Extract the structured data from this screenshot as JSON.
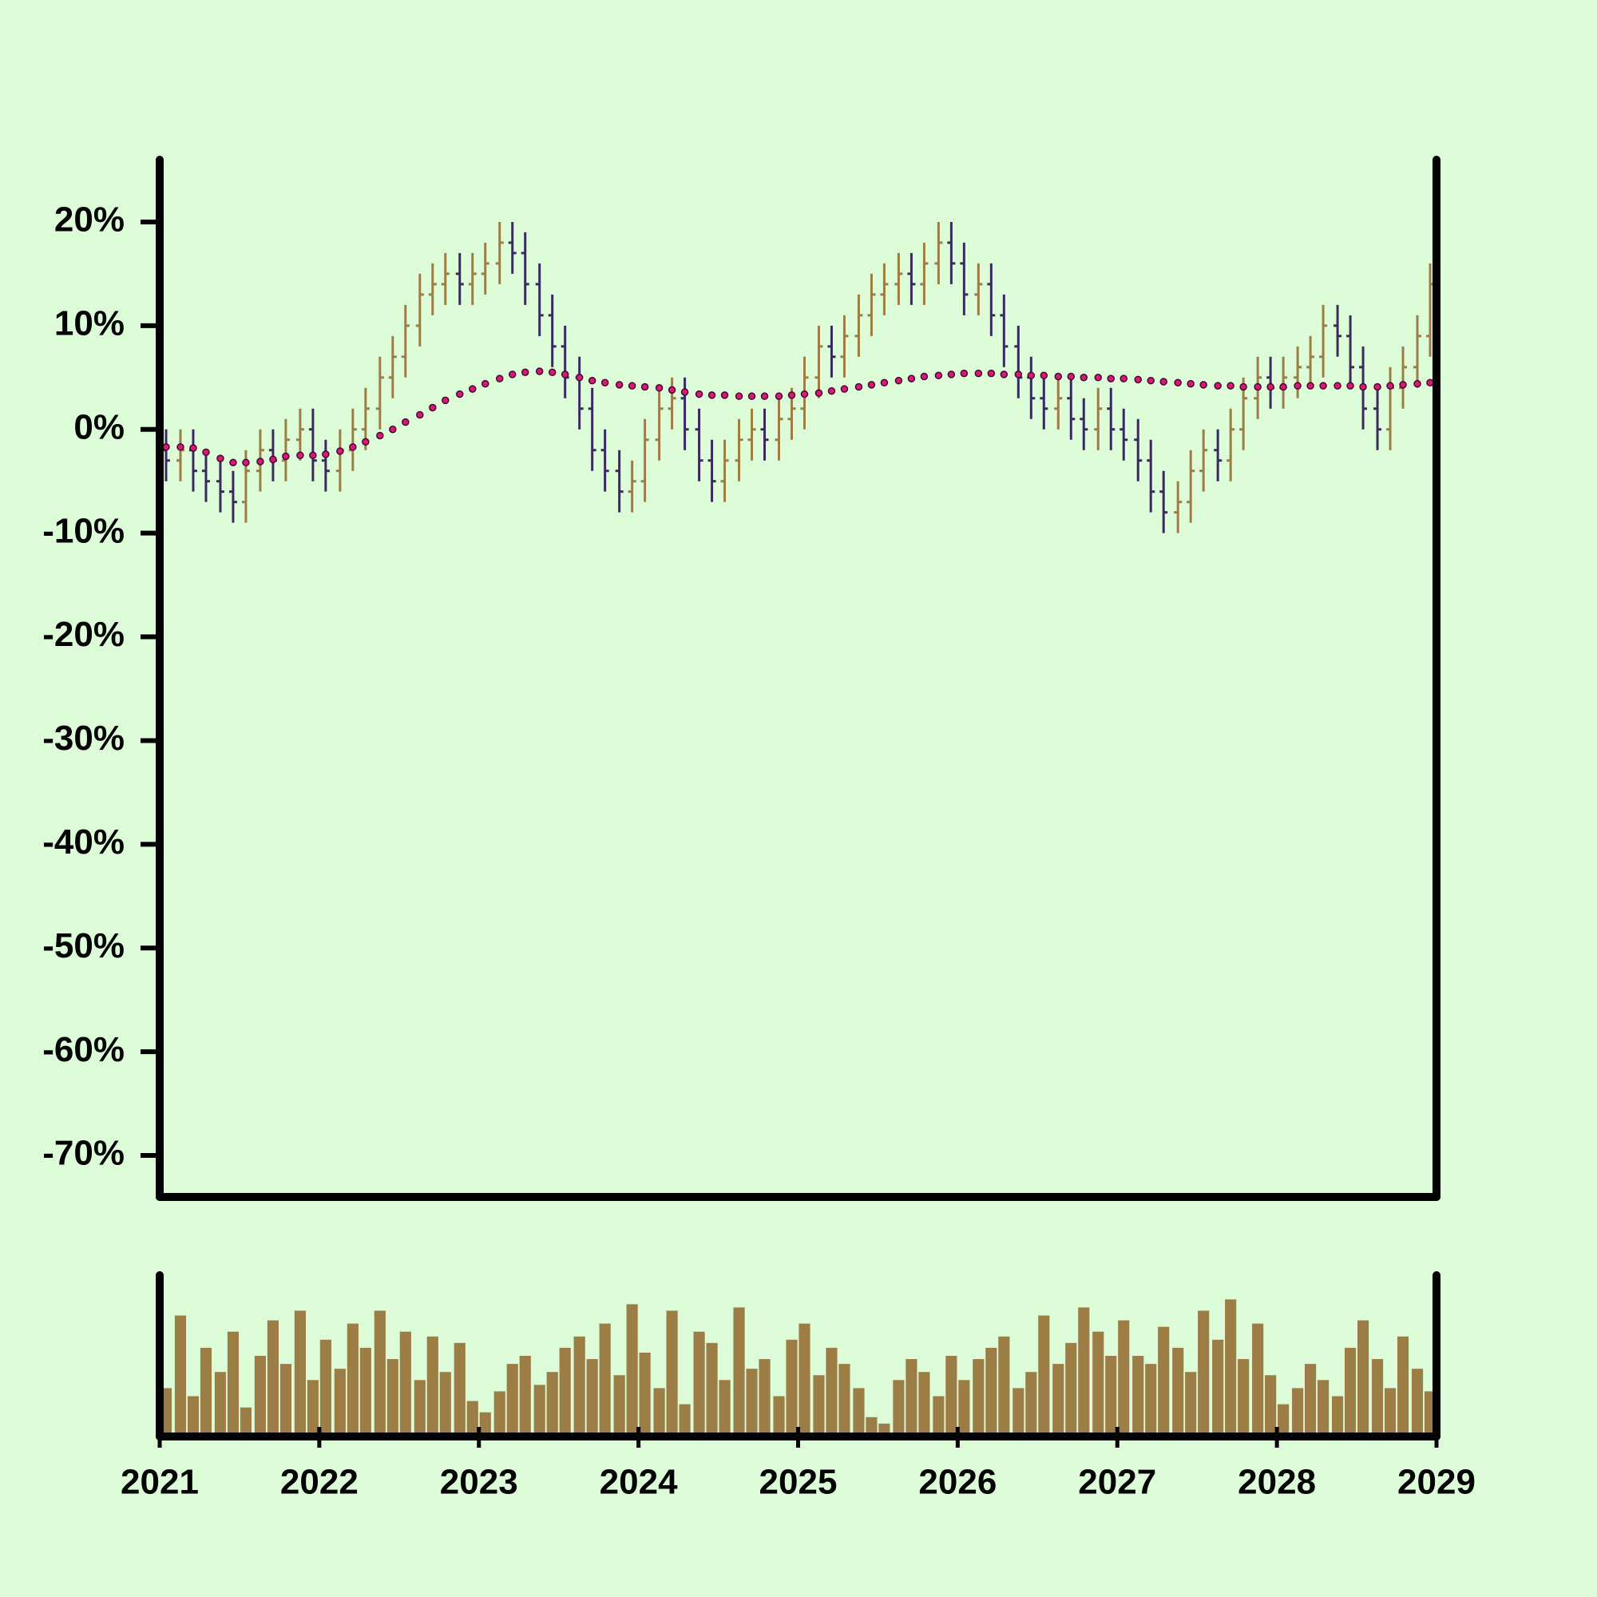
{
  "chart_data": [
    {
      "type": "ohlc",
      "x": [
        2021.04,
        2021.13,
        2021.21,
        2021.29,
        2021.38,
        2021.46,
        2021.54,
        2021.63,
        2021.71,
        2021.79,
        2021.88,
        2021.96,
        2022.04,
        2022.13,
        2022.21,
        2022.29,
        2022.38,
        2022.46,
        2022.54,
        2022.63,
        2022.71,
        2022.79,
        2022.88,
        2022.96,
        2023.04,
        2023.13,
        2023.21,
        2023.29,
        2023.38,
        2023.46,
        2023.54,
        2023.63,
        2023.71,
        2023.79,
        2023.88,
        2023.96,
        2024.04,
        2024.13,
        2024.21,
        2024.29,
        2024.38,
        2024.46,
        2024.54,
        2024.63,
        2024.71,
        2024.79,
        2024.88,
        2024.96,
        2025.04,
        2025.13,
        2025.21,
        2025.29,
        2025.38,
        2025.46,
        2025.54,
        2025.63,
        2025.71,
        2025.79,
        2025.88,
        2025.96,
        2026.04,
        2026.13,
        2026.21,
        2026.29,
        2026.38,
        2026.46,
        2026.54,
        2026.63,
        2026.71,
        2026.79,
        2026.88,
        2026.96,
        2027.04,
        2027.13,
        2027.21,
        2027.29,
        2027.38,
        2027.46,
        2027.54,
        2027.63,
        2027.71,
        2027.79,
        2027.88,
        2027.96,
        2028.04,
        2028.13,
        2028.21,
        2028.29,
        2028.38,
        2028.46,
        2028.54,
        2028.63,
        2028.71,
        2028.79,
        2028.88,
        2028.96
      ],
      "open": [
        -2,
        -3,
        -2,
        -4,
        -5,
        -6,
        -7,
        -4,
        -2,
        -3,
        -1,
        0,
        -3,
        -4,
        -2,
        0,
        2,
        5,
        7,
        10,
        13,
        14,
        15,
        14,
        15,
        16,
        18,
        17,
        14,
        11,
        8,
        5,
        2,
        -2,
        -4,
        -6,
        -5,
        -1,
        2,
        3,
        0,
        -3,
        -5,
        -3,
        -1,
        0,
        -1,
        1,
        2,
        5,
        8,
        7,
        9,
        11,
        13,
        14,
        15,
        14,
        16,
        18,
        16,
        13,
        14,
        11,
        8,
        5,
        3,
        2,
        3,
        1,
        0,
        2,
        0,
        -1,
        -3,
        -6,
        -8,
        -7,
        -4,
        -2,
        -3,
        0,
        3,
        5,
        4,
        5,
        6,
        7,
        10,
        9,
        6,
        2,
        0,
        4,
        6,
        9
      ],
      "high": [
        0,
        0,
        0,
        -2,
        -3,
        -4,
        -2,
        0,
        0,
        1,
        2,
        2,
        -1,
        0,
        2,
        4,
        7,
        9,
        12,
        15,
        16,
        17,
        17,
        17,
        18,
        20,
        20,
        19,
        16,
        13,
        10,
        7,
        4,
        0,
        -2,
        -3,
        1,
        4,
        5,
        5,
        2,
        -1,
        -1,
        1,
        2,
        2,
        3,
        4,
        7,
        10,
        10,
        11,
        13,
        15,
        16,
        17,
        17,
        18,
        20,
        20,
        18,
        16,
        16,
        13,
        10,
        7,
        5,
        5,
        5,
        3,
        4,
        4,
        2,
        1,
        -1,
        -4,
        -5,
        -2,
        0,
        0,
        2,
        5,
        7,
        7,
        7,
        8,
        9,
        12,
        12,
        11,
        8,
        4,
        6,
        8,
        11,
        16
      ],
      "low": [
        -5,
        -5,
        -6,
        -7,
        -8,
        -9,
        -9,
        -6,
        -5,
        -5,
        -3,
        -5,
        -6,
        -6,
        -4,
        -2,
        0,
        3,
        5,
        8,
        11,
        12,
        12,
        12,
        13,
        14,
        15,
        12,
        9,
        6,
        3,
        0,
        -4,
        -6,
        -8,
        -8,
        -7,
        -3,
        0,
        -2,
        -5,
        -7,
        -7,
        -5,
        -3,
        -3,
        -3,
        -1,
        0,
        3,
        5,
        5,
        7,
        9,
        11,
        12,
        12,
        12,
        14,
        14,
        11,
        11,
        9,
        6,
        3,
        1,
        0,
        0,
        -1,
        -2,
        -2,
        -2,
        -3,
        -5,
        -8,
        -10,
        -10,
        -9,
        -6,
        -5,
        -5,
        -2,
        1,
        2,
        2,
        3,
        4,
        5,
        7,
        4,
        0,
        -2,
        -2,
        2,
        4,
        7
      ],
      "close": [
        -3,
        -2,
        -4,
        -5,
        -6,
        -7,
        -4,
        -2,
        -3,
        -1,
        0,
        -3,
        -4,
        -2,
        0,
        2,
        5,
        7,
        10,
        13,
        14,
        15,
        14,
        15,
        16,
        18,
        17,
        14,
        11,
        8,
        5,
        2,
        -2,
        -4,
        -6,
        -5,
        -1,
        2,
        3,
        0,
        -3,
        -5,
        -3,
        -1,
        0,
        -1,
        1,
        2,
        5,
        8,
        7,
        9,
        11,
        13,
        14,
        15,
        14,
        16,
        18,
        16,
        13,
        14,
        11,
        8,
        5,
        3,
        2,
        3,
        1,
        0,
        2,
        0,
        -1,
        -3,
        -6,
        -8,
        -7,
        -4,
        -2,
        -3,
        0,
        3,
        5,
        4,
        5,
        6,
        7,
        10,
        9,
        6,
        2,
        0,
        4,
        6,
        9,
        14
      ],
      "up_color": "#9b7d45",
      "down_color": "#3b2a5e",
      "ma": {
        "color": "#e0147a",
        "values": [
          -1.7,
          -1.7,
          -1.8,
          -2.2,
          -2.8,
          -3.2,
          -3.2,
          -3.1,
          -2.9,
          -2.6,
          -2.5,
          -2.5,
          -2.4,
          -2.1,
          -1.7,
          -1.2,
          -0.6,
          0.0,
          0.7,
          1.4,
          2.1,
          2.8,
          3.4,
          3.9,
          4.4,
          4.9,
          5.3,
          5.5,
          5.6,
          5.5,
          5.3,
          5.0,
          4.7,
          4.5,
          4.3,
          4.2,
          4.1,
          4.0,
          3.8,
          3.6,
          3.4,
          3.3,
          3.3,
          3.2,
          3.2,
          3.2,
          3.2,
          3.3,
          3.4,
          3.5,
          3.7,
          3.9,
          4.1,
          4.3,
          4.5,
          4.7,
          4.9,
          5.1,
          5.2,
          5.3,
          5.4,
          5.4,
          5.4,
          5.3,
          5.3,
          5.2,
          5.2,
          5.1,
          5.1,
          5.0,
          5.0,
          4.9,
          4.9,
          4.8,
          4.7,
          4.6,
          4.5,
          4.4,
          4.3,
          4.2,
          4.2,
          4.1,
          4.1,
          4.1,
          4.1,
          4.2,
          4.2,
          4.2,
          4.2,
          4.2,
          4.1,
          4.1,
          4.2,
          4.3,
          4.4,
          4.5
        ]
      },
      "xlim": [
        2021,
        2029
      ],
      "ylim": [
        -74,
        26
      ],
      "yticks": [
        {
          "value": 20,
          "label": "20%"
        },
        {
          "value": 10,
          "label": "10%"
        },
        {
          "value": 0,
          "label": "0%"
        },
        {
          "value": -10,
          "label": "-10%"
        },
        {
          "value": -20,
          "label": "-20%"
        },
        {
          "value": -30,
          "label": "-30%"
        },
        {
          "value": -40,
          "label": "-40%"
        },
        {
          "value": -50,
          "label": "-50%"
        },
        {
          "value": -60,
          "label": "-60%"
        },
        {
          "value": -70,
          "label": "-70%"
        }
      ]
    },
    {
      "type": "bar",
      "x": [
        2021.04,
        2021.13,
        2021.21,
        2021.29,
        2021.38,
        2021.46,
        2021.54,
        2021.63,
        2021.71,
        2021.79,
        2021.88,
        2021.96,
        2022.04,
        2022.13,
        2022.21,
        2022.29,
        2022.38,
        2022.46,
        2022.54,
        2022.63,
        2022.71,
        2022.79,
        2022.88,
        2022.96,
        2023.04,
        2023.13,
        2023.21,
        2023.29,
        2023.38,
        2023.46,
        2023.54,
        2023.63,
        2023.71,
        2023.79,
        2023.88,
        2023.96,
        2024.04,
        2024.13,
        2024.21,
        2024.29,
        2024.38,
        2024.46,
        2024.54,
        2024.63,
        2024.71,
        2024.79,
        2024.88,
        2024.96,
        2025.04,
        2025.13,
        2025.21,
        2025.29,
        2025.38,
        2025.46,
        2025.54,
        2025.63,
        2025.71,
        2025.79,
        2025.88,
        2025.96,
        2026.04,
        2026.13,
        2026.21,
        2026.29,
        2026.38,
        2026.46,
        2026.54,
        2026.63,
        2026.71,
        2026.79,
        2026.88,
        2026.96,
        2027.04,
        2027.13,
        2027.21,
        2027.29,
        2027.38,
        2027.46,
        2027.54,
        2027.63,
        2027.71,
        2027.79,
        2027.88,
        2027.96,
        2028.04,
        2028.13,
        2028.21,
        2028.29,
        2028.38,
        2028.46,
        2028.54,
        2028.63,
        2028.71,
        2028.79,
        2028.88,
        2028.96
      ],
      "values": [
        30,
        75,
        25,
        55,
        40,
        65,
        18,
        50,
        72,
        45,
        78,
        35,
        60,
        42,
        70,
        55,
        78,
        48,
        65,
        35,
        62,
        40,
        58,
        22,
        15,
        28,
        45,
        50,
        32,
        40,
        55,
        62,
        48,
        70,
        38,
        82,
        52,
        30,
        78,
        20,
        65,
        58,
        35,
        80,
        42,
        48,
        25,
        60,
        70,
        38,
        55,
        45,
        30,
        12,
        8,
        35,
        48,
        40,
        25,
        50,
        35,
        48,
        55,
        62,
        30,
        40,
        75,
        45,
        58,
        80,
        65,
        50,
        72,
        50,
        45,
        68,
        55,
        40,
        78,
        60,
        85,
        48,
        70,
        38,
        20,
        30,
        45,
        35,
        25,
        55,
        72,
        48,
        30,
        62,
        42,
        28
      ],
      "color": "#9b7d45",
      "xlim": [
        2021,
        2029
      ],
      "ylim": [
        0,
        100
      ],
      "xticks": [
        2021,
        2022,
        2023,
        2024,
        2025,
        2026,
        2027,
        2028,
        2029
      ]
    }
  ]
}
